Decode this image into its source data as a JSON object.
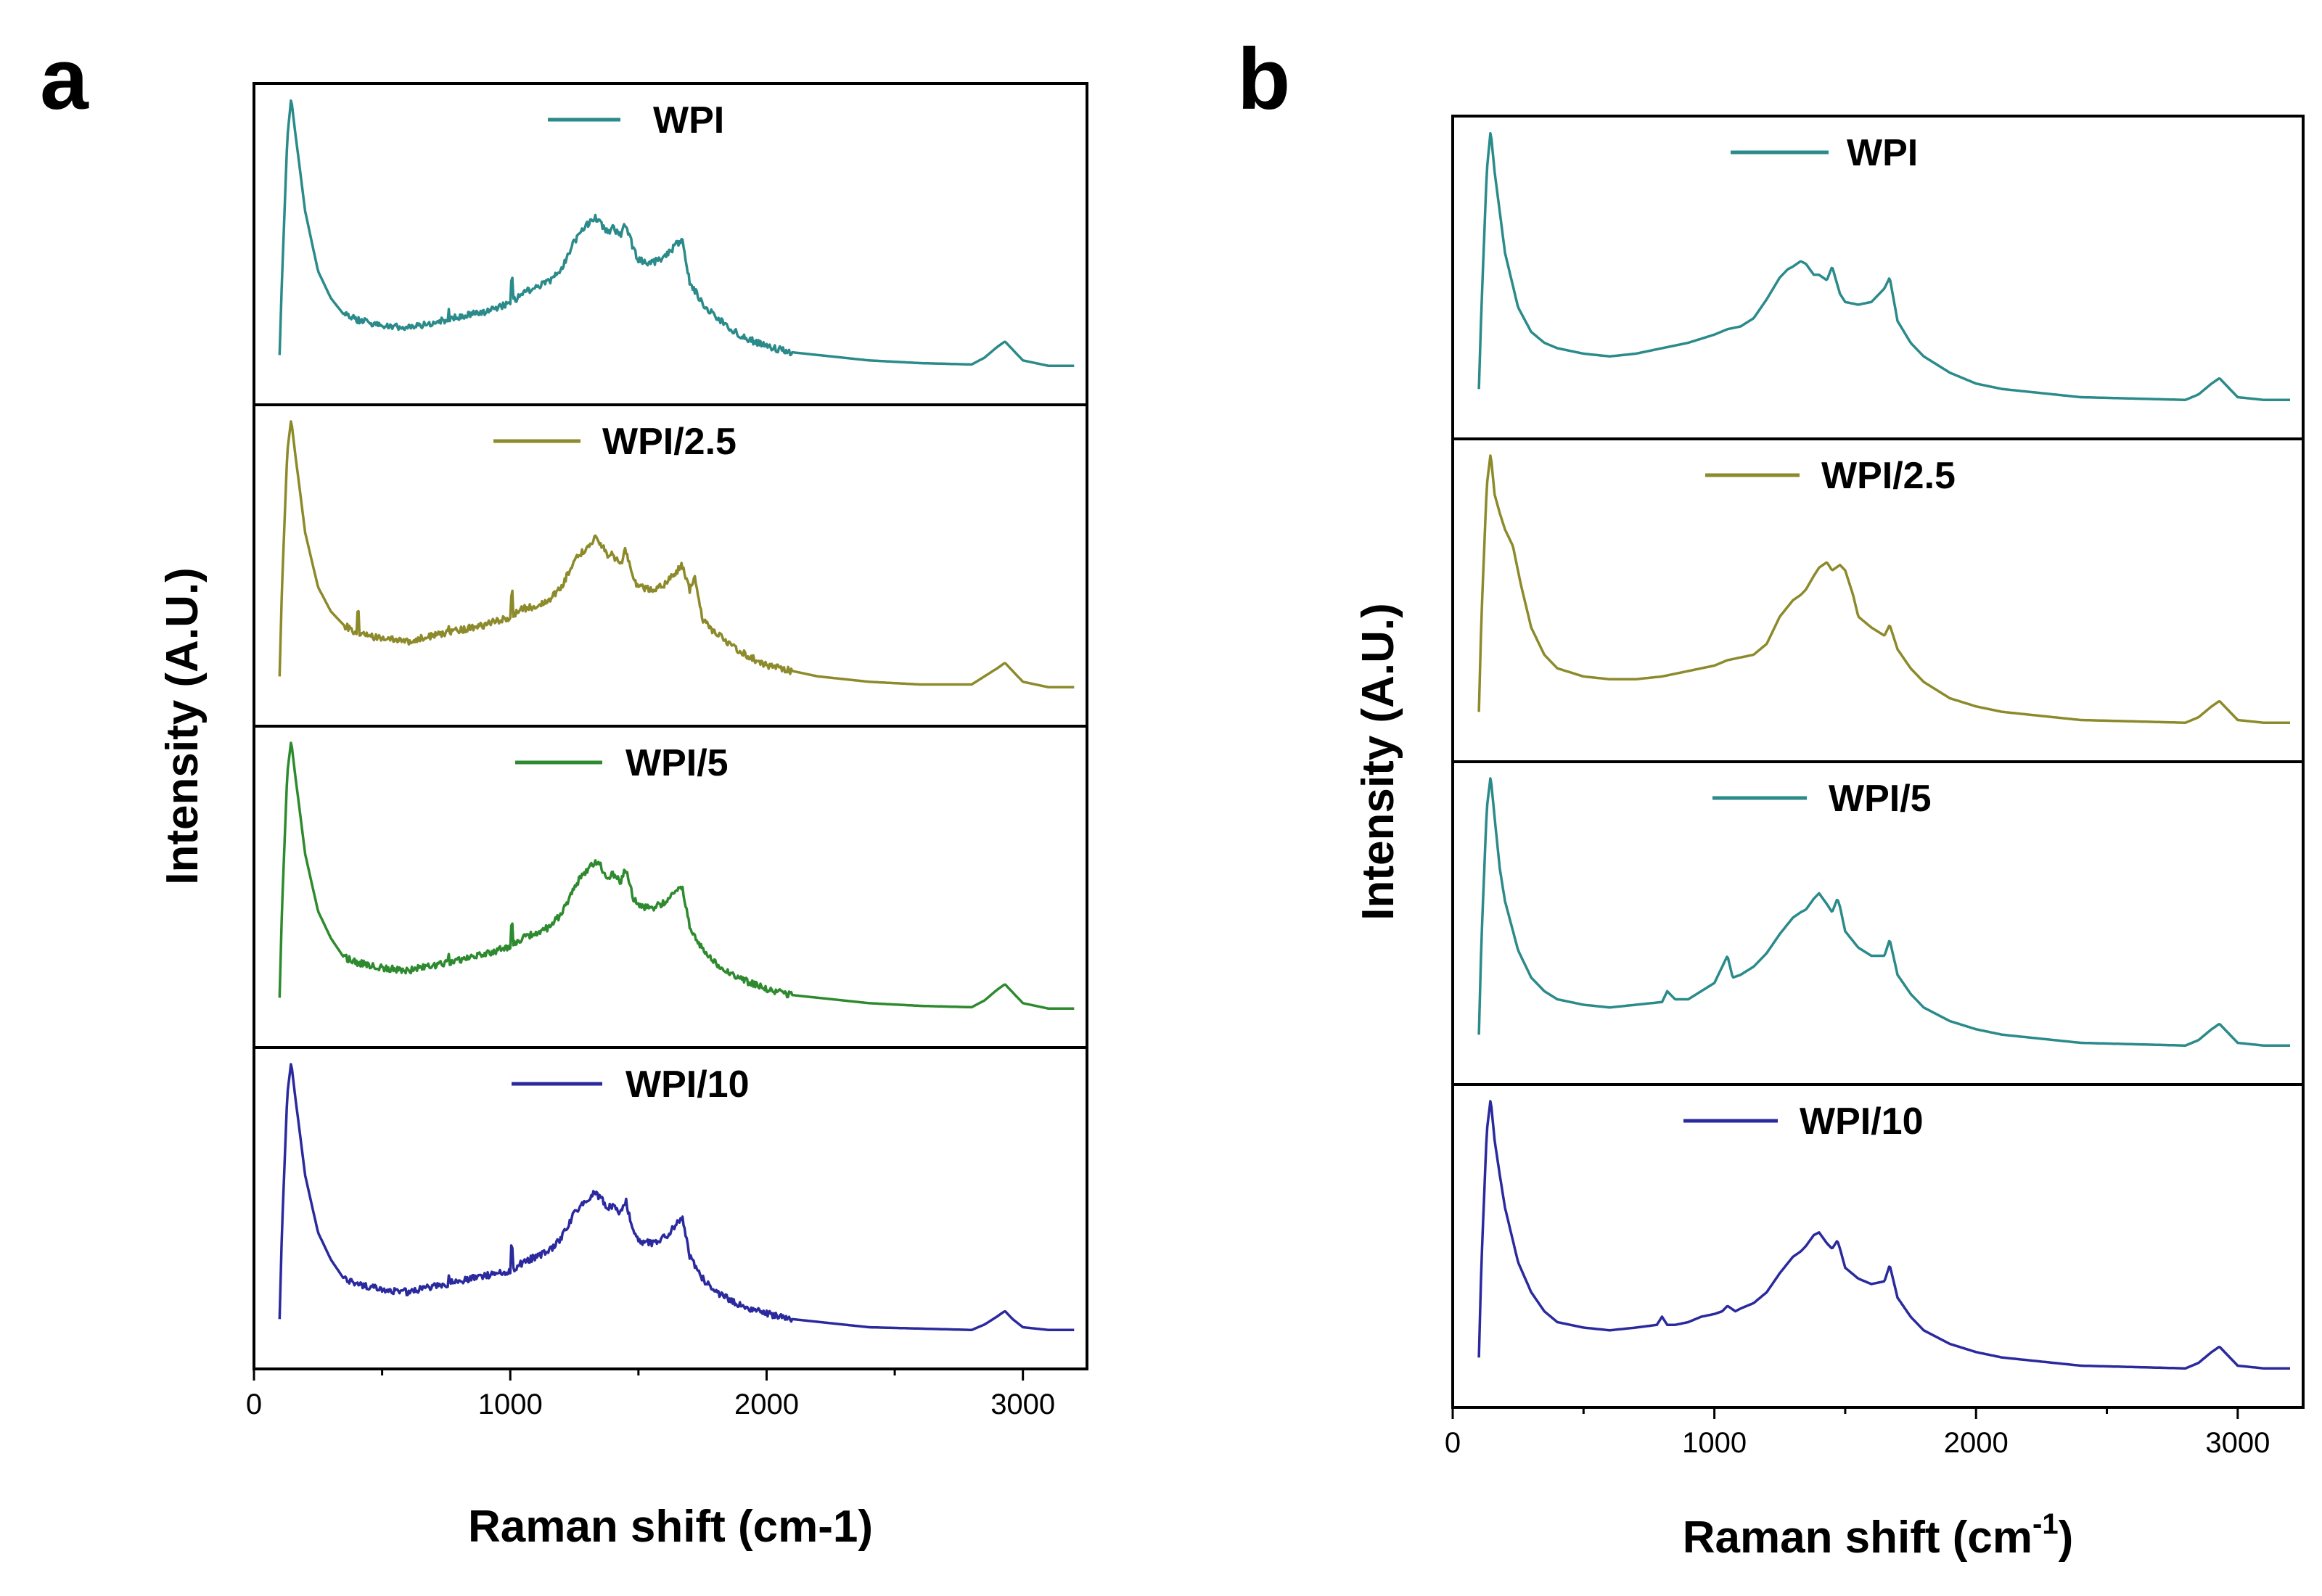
{
  "chart_data": [
    {
      "type": "line",
      "panel_label": "a",
      "xlabel": "Raman shift (cm-1)",
      "xlabel_sup": "",
      "ylabel": "Intensity (A.U.)",
      "xlim": [
        0,
        3250
      ],
      "xticks": [
        0,
        1000,
        2000,
        3000
      ],
      "grid": false,
      "legend": "top-center of each stacked sub-panel",
      "noise": true,
      "series": [
        {
          "name": "WPI",
          "color": "#2b8a8a",
          "x": [
            100,
            110,
            130,
            145,
            160,
            200,
            250,
            300,
            350,
            400,
            500,
            600,
            700,
            800,
            900,
            1000,
            1050,
            1100,
            1150,
            1200,
            1250,
            1280,
            1300,
            1330,
            1350,
            1380,
            1400,
            1430,
            1450,
            1480,
            1500,
            1550,
            1600,
            1650,
            1670,
            1700,
            1750,
            1800,
            1900,
            2000,
            2100,
            2200,
            2400,
            2600,
            2800,
            2850,
            2900,
            2930,
            2960,
            3000,
            3100,
            3200
          ],
          "y": [
            0.05,
            0.35,
            0.85,
            1.0,
            0.88,
            0.58,
            0.36,
            0.26,
            0.2,
            0.18,
            0.16,
            0.15,
            0.17,
            0.19,
            0.21,
            0.24,
            0.28,
            0.3,
            0.32,
            0.37,
            0.47,
            0.51,
            0.53,
            0.56,
            0.54,
            0.5,
            0.52,
            0.49,
            0.54,
            0.44,
            0.4,
            0.39,
            0.41,
            0.46,
            0.48,
            0.32,
            0.24,
            0.19,
            0.12,
            0.08,
            0.06,
            0.05,
            0.03,
            0.02,
            0.015,
            0.04,
            0.08,
            0.1,
            0.07,
            0.03,
            0.01,
            0.01
          ]
        },
        {
          "name": "WPI/2.5",
          "color": "#8c8a2a",
          "x": [
            100,
            110,
            130,
            145,
            160,
            200,
            250,
            300,
            350,
            400,
            500,
            600,
            700,
            800,
            900,
            1000,
            1050,
            1100,
            1150,
            1200,
            1250,
            1280,
            1300,
            1330,
            1350,
            1380,
            1400,
            1430,
            1450,
            1480,
            1500,
            1550,
            1600,
            1650,
            1670,
            1700,
            1720,
            1750,
            1800,
            1900,
            2000,
            2100,
            2200,
            2400,
            2600,
            2800,
            2850,
            2900,
            2930,
            2960,
            3000,
            3100,
            3200
          ],
          "y": [
            0.05,
            0.4,
            0.88,
            1.0,
            0.88,
            0.58,
            0.38,
            0.29,
            0.24,
            0.21,
            0.19,
            0.18,
            0.2,
            0.22,
            0.24,
            0.27,
            0.3,
            0.31,
            0.33,
            0.38,
            0.48,
            0.51,
            0.52,
            0.56,
            0.54,
            0.5,
            0.5,
            0.46,
            0.52,
            0.41,
            0.38,
            0.37,
            0.39,
            0.44,
            0.46,
            0.37,
            0.42,
            0.26,
            0.21,
            0.14,
            0.09,
            0.07,
            0.05,
            0.03,
            0.02,
            0.02,
            0.05,
            0.08,
            0.1,
            0.07,
            0.03,
            0.01,
            0.01
          ]
        },
        {
          "name": "WPI/5",
          "color": "#2e8a2e",
          "x": [
            100,
            110,
            130,
            145,
            160,
            200,
            250,
            300,
            350,
            400,
            500,
            600,
            700,
            800,
            900,
            1000,
            1050,
            1100,
            1150,
            1200,
            1250,
            1280,
            1300,
            1330,
            1350,
            1380,
            1400,
            1430,
            1450,
            1480,
            1500,
            1550,
            1600,
            1650,
            1670,
            1700,
            1750,
            1800,
            1900,
            2000,
            2100,
            2200,
            2400,
            2600,
            2800,
            2850,
            2900,
            2930,
            2960,
            3000,
            3100,
            3200
          ],
          "y": [
            0.05,
            0.4,
            0.88,
            1.0,
            0.88,
            0.58,
            0.37,
            0.27,
            0.2,
            0.18,
            0.16,
            0.15,
            0.17,
            0.19,
            0.21,
            0.24,
            0.27,
            0.29,
            0.31,
            0.36,
            0.46,
            0.5,
            0.52,
            0.55,
            0.54,
            0.49,
            0.51,
            0.48,
            0.53,
            0.42,
            0.39,
            0.38,
            0.4,
            0.44,
            0.46,
            0.31,
            0.23,
            0.18,
            0.12,
            0.08,
            0.06,
            0.05,
            0.03,
            0.02,
            0.015,
            0.04,
            0.08,
            0.1,
            0.07,
            0.03,
            0.01,
            0.01
          ]
        },
        {
          "name": "WPI/10",
          "color": "#2a2a9e",
          "x": [
            100,
            110,
            130,
            145,
            160,
            200,
            250,
            300,
            350,
            400,
            500,
            600,
            700,
            800,
            900,
            1000,
            1050,
            1100,
            1150,
            1200,
            1250,
            1280,
            1300,
            1330,
            1350,
            1380,
            1400,
            1430,
            1450,
            1480,
            1500,
            1550,
            1600,
            1650,
            1670,
            1700,
            1750,
            1800,
            1900,
            2000,
            2100,
            2200,
            2400,
            2600,
            2800,
            2850,
            2900,
            2930,
            2960,
            3000,
            3100,
            3200
          ],
          "y": [
            0.05,
            0.4,
            0.88,
            1.0,
            0.88,
            0.58,
            0.37,
            0.27,
            0.2,
            0.18,
            0.16,
            0.15,
            0.17,
            0.19,
            0.21,
            0.23,
            0.26,
            0.28,
            0.3,
            0.35,
            0.44,
            0.48,
            0.49,
            0.52,
            0.5,
            0.46,
            0.47,
            0.44,
            0.49,
            0.37,
            0.34,
            0.33,
            0.35,
            0.4,
            0.43,
            0.28,
            0.2,
            0.15,
            0.1,
            0.07,
            0.05,
            0.04,
            0.02,
            0.015,
            0.01,
            0.03,
            0.06,
            0.08,
            0.05,
            0.02,
            0.01,
            0.01
          ]
        }
      ]
    },
    {
      "type": "line",
      "panel_label": "b",
      "xlabel": "Raman shift (cm",
      "xlabel_sup": "-1",
      "xlabel_suffix": ")",
      "ylabel": "Intensity (A.U.)",
      "xlim": [
        0,
        3250
      ],
      "xticks": [
        0,
        1000,
        2000,
        3000
      ],
      "grid": false,
      "legend": "top-center of each stacked sub-panel",
      "noise": false,
      "series": [
        {
          "name": "WPI",
          "color": "#2b8a8a",
          "x": [
            100,
            110,
            130,
            145,
            160,
            200,
            250,
            300,
            350,
            400,
            500,
            600,
            700,
            800,
            900,
            1000,
            1050,
            1100,
            1150,
            1200,
            1250,
            1280,
            1300,
            1330,
            1350,
            1380,
            1400,
            1430,
            1450,
            1480,
            1500,
            1550,
            1600,
            1650,
            1670,
            1700,
            1750,
            1800,
            1900,
            2000,
            2100,
            2200,
            2400,
            2600,
            2800,
            2850,
            2900,
            2930,
            2960,
            3000,
            3100,
            3200
          ],
          "y": [
            0.05,
            0.35,
            0.85,
            1.0,
            0.85,
            0.55,
            0.35,
            0.26,
            0.22,
            0.2,
            0.18,
            0.17,
            0.18,
            0.2,
            0.22,
            0.25,
            0.27,
            0.28,
            0.31,
            0.38,
            0.46,
            0.49,
            0.5,
            0.52,
            0.51,
            0.47,
            0.47,
            0.45,
            0.5,
            0.4,
            0.37,
            0.36,
            0.37,
            0.42,
            0.46,
            0.3,
            0.22,
            0.17,
            0.11,
            0.07,
            0.05,
            0.04,
            0.02,
            0.015,
            0.01,
            0.03,
            0.07,
            0.09,
            0.06,
            0.02,
            0.01,
            0.01
          ]
        },
        {
          "name": "WPI/2.5",
          "color": "#8c8a2a",
          "x": [
            100,
            110,
            130,
            145,
            160,
            180,
            200,
            230,
            260,
            300,
            350,
            400,
            500,
            600,
            700,
            800,
            900,
            1000,
            1050,
            1100,
            1150,
            1200,
            1250,
            1300,
            1330,
            1350,
            1380,
            1400,
            1430,
            1450,
            1480,
            1500,
            1530,
            1550,
            1600,
            1650,
            1670,
            1700,
            1750,
            1800,
            1900,
            2000,
            2100,
            2200,
            2400,
            2600,
            2800,
            2850,
            2900,
            2930,
            2960,
            3000,
            3100,
            3200
          ],
          "y": [
            0.05,
            0.4,
            0.88,
            1.0,
            0.85,
            0.78,
            0.72,
            0.66,
            0.52,
            0.36,
            0.26,
            0.21,
            0.18,
            0.17,
            0.17,
            0.18,
            0.2,
            0.22,
            0.24,
            0.25,
            0.26,
            0.3,
            0.4,
            0.46,
            0.48,
            0.5,
            0.55,
            0.58,
            0.6,
            0.57,
            0.59,
            0.57,
            0.48,
            0.4,
            0.36,
            0.33,
            0.37,
            0.28,
            0.21,
            0.16,
            0.1,
            0.07,
            0.05,
            0.04,
            0.02,
            0.015,
            0.01,
            0.03,
            0.07,
            0.09,
            0.06,
            0.02,
            0.01,
            0.01
          ]
        },
        {
          "name": "WPI/5",
          "color": "#2b8a8a",
          "x": [
            100,
            110,
            130,
            145,
            160,
            180,
            200,
            250,
            300,
            350,
            400,
            500,
            600,
            700,
            800,
            820,
            850,
            900,
            950,
            1000,
            1030,
            1050,
            1070,
            1100,
            1150,
            1200,
            1250,
            1300,
            1330,
            1350,
            1380,
            1400,
            1430,
            1450,
            1470,
            1480,
            1500,
            1550,
            1600,
            1650,
            1670,
            1700,
            1750,
            1800,
            1900,
            2000,
            2100,
            2200,
            2400,
            2600,
            2800,
            2850,
            2900,
            2930,
            2960,
            3000,
            3100,
            3200
          ],
          "y": [
            0.05,
            0.4,
            0.88,
            1.0,
            0.85,
            0.66,
            0.54,
            0.36,
            0.26,
            0.21,
            0.18,
            0.16,
            0.15,
            0.16,
            0.17,
            0.21,
            0.18,
            0.18,
            0.21,
            0.24,
            0.3,
            0.34,
            0.26,
            0.27,
            0.3,
            0.35,
            0.42,
            0.48,
            0.5,
            0.51,
            0.55,
            0.57,
            0.53,
            0.5,
            0.55,
            0.52,
            0.43,
            0.37,
            0.34,
            0.34,
            0.4,
            0.27,
            0.2,
            0.15,
            0.1,
            0.07,
            0.05,
            0.04,
            0.02,
            0.015,
            0.01,
            0.03,
            0.07,
            0.09,
            0.06,
            0.02,
            0.01,
            0.01
          ]
        },
        {
          "name": "WPI/10",
          "color": "#2a2a9e",
          "x": [
            100,
            110,
            130,
            145,
            160,
            180,
            200,
            250,
            300,
            350,
            400,
            500,
            600,
            700,
            780,
            800,
            820,
            850,
            900,
            950,
            1000,
            1030,
            1050,
            1080,
            1100,
            1150,
            1200,
            1250,
            1300,
            1330,
            1350,
            1380,
            1400,
            1430,
            1450,
            1470,
            1480,
            1500,
            1550,
            1600,
            1650,
            1670,
            1700,
            1750,
            1800,
            1900,
            2000,
            2100,
            2200,
            2400,
            2600,
            2800,
            2850,
            2900,
            2930,
            2960,
            3000,
            3100,
            3200
          ],
          "y": [
            0.05,
            0.4,
            0.88,
            1.0,
            0.85,
            0.72,
            0.6,
            0.4,
            0.29,
            0.22,
            0.18,
            0.16,
            0.15,
            0.16,
            0.17,
            0.2,
            0.17,
            0.17,
            0.18,
            0.2,
            0.21,
            0.22,
            0.24,
            0.22,
            0.23,
            0.25,
            0.29,
            0.36,
            0.42,
            0.44,
            0.46,
            0.5,
            0.51,
            0.47,
            0.45,
            0.48,
            0.45,
            0.38,
            0.34,
            0.32,
            0.33,
            0.39,
            0.27,
            0.2,
            0.15,
            0.1,
            0.07,
            0.05,
            0.04,
            0.02,
            0.015,
            0.01,
            0.03,
            0.07,
            0.09,
            0.06,
            0.02,
            0.01,
            0.01
          ]
        }
      ]
    }
  ]
}
